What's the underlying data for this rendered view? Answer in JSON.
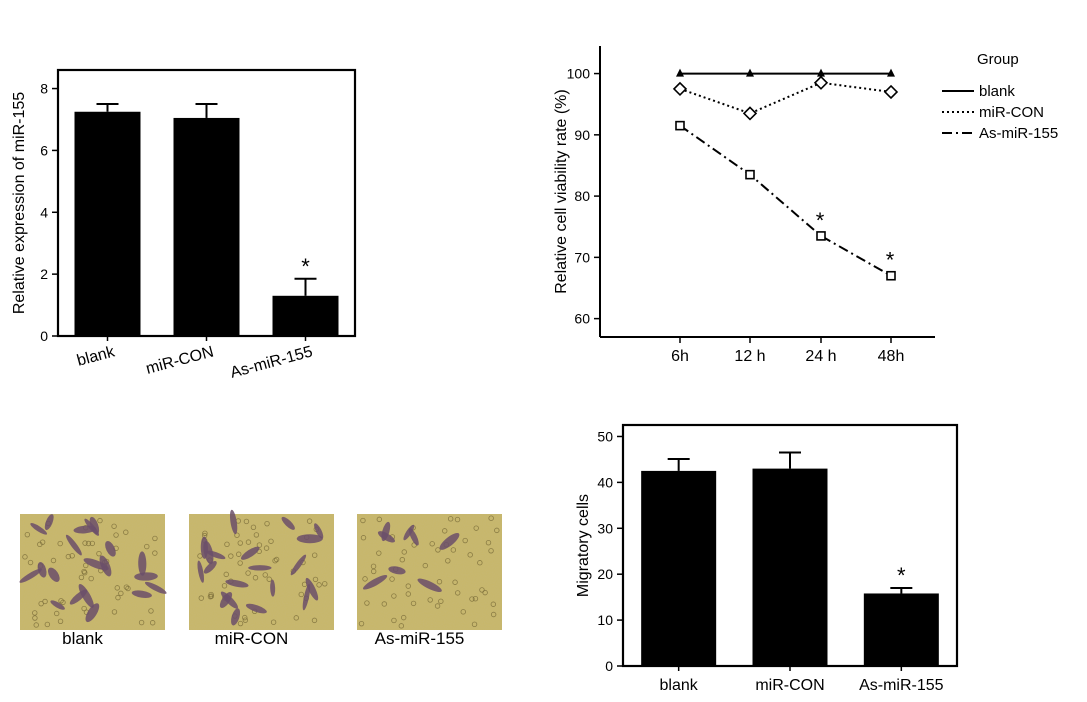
{
  "colors": {
    "bar": "#000000",
    "axis": "#000000",
    "micro_bg": "#c8b768",
    "cell_stain": "#6b4f6a"
  },
  "panels": {
    "microscopy": {
      "labels": [
        "blank",
        "miR-CON",
        "As-miR-155"
      ],
      "cell_counts": [
        42,
        43,
        16
      ]
    }
  },
  "chart_data": [
    {
      "type": "bar",
      "categories": [
        "blank",
        "miR-CON",
        "As-miR-155"
      ],
      "values": [
        7.25,
        7.05,
        1.3
      ],
      "errors": [
        0.25,
        0.45,
        0.55
      ],
      "significance": [
        "",
        "",
        "*"
      ],
      "title": "",
      "xlabel": "",
      "ylabel": "Relative expression of miR-155",
      "ylim": [
        0,
        8.6
      ],
      "yticks": [
        0,
        2,
        4,
        6,
        8
      ],
      "grid": false
    },
    {
      "type": "line",
      "x": [
        "6h",
        "12 h",
        "24 h",
        "48h"
      ],
      "series": [
        {
          "name": "blank",
          "values": [
            100,
            100,
            100,
            100
          ],
          "marker": "triangle",
          "dash": "solid"
        },
        {
          "name": "miR-CON",
          "values": [
            97.5,
            93.5,
            98.5,
            97
          ],
          "marker": "diamond",
          "dash": "dotted"
        },
        {
          "name": "As-miR-155",
          "values": [
            91.5,
            83.5,
            73.5,
            67
          ],
          "marker": "square",
          "dash": "dashdot"
        }
      ],
      "significance": [
        "",
        "",
        "*",
        "*"
      ],
      "title": "",
      "xlabel": "",
      "ylabel": "Relative cell viability rate (%)",
      "ylim": [
        57,
        104.5
      ],
      "yticks": [
        60,
        70,
        80,
        90,
        100
      ],
      "legend_title": "Group",
      "legend_placement": "right",
      "grid": false
    },
    {
      "type": "bar",
      "categories": [
        "blank",
        "miR-CON",
        "As-miR-155"
      ],
      "values": [
        42.5,
        43,
        15.8
      ],
      "errors": [
        2.6,
        3.5,
        1.2
      ],
      "significance": [
        "",
        "",
        "*"
      ],
      "title": "",
      "xlabel": "",
      "ylabel": "Migratory cells",
      "ylim": [
        0,
        52.5
      ],
      "yticks": [
        0,
        10,
        20,
        30,
        40,
        50
      ],
      "grid": false
    }
  ]
}
